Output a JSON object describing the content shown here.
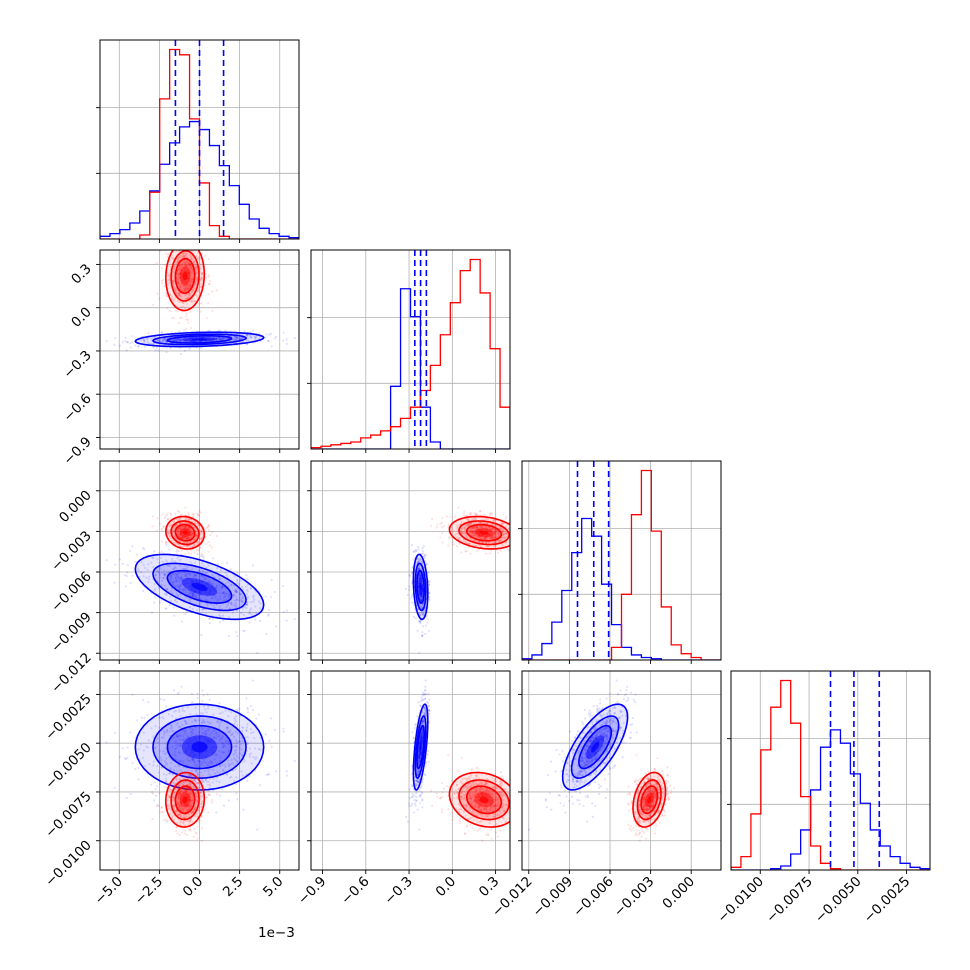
{
  "figure": {
    "x_offset_label": "1e−3"
  },
  "colors": {
    "series_a": "#0000ff",
    "series_b": "#ff0000",
    "grid": "#b0b0b0",
    "frame": "#000000"
  },
  "chart_data": {
    "type": "corner",
    "grid": true,
    "parameters": [
      {
        "range": [
          -6.2,
          6.2
        ],
        "ticks": [
          -5.0,
          -2.5,
          0.0,
          2.5,
          5.0
        ],
        "tick_labels": [
          "−5.0",
          "−2.5",
          "0.0",
          "2.5",
          "5.0"
        ],
        "offset_label": "1e−3"
      },
      {
        "range": [
          -0.98,
          0.4
        ],
        "ticks": [
          -0.9,
          -0.6,
          -0.3,
          0.0,
          0.3
        ],
        "tick_labels": [
          "−0.9",
          "−0.6",
          "−0.3",
          "0.0",
          "0.3"
        ]
      },
      {
        "range": [
          -0.0125,
          0.0022
        ],
        "ticks": [
          -0.012,
          -0.009,
          -0.006,
          -0.003,
          0.0
        ],
        "tick_labels": [
          "−0.012",
          "−0.009",
          "−0.006",
          "−0.003",
          "0.000"
        ]
      },
      {
        "range": [
          -0.0115,
          -0.0013
        ],
        "ticks": [
          -0.01,
          -0.0075,
          -0.005,
          -0.0025
        ],
        "tick_labels": [
          "−0.0100",
          "−0.0075",
          "−0.0050",
          "−0.0025"
        ]
      }
    ],
    "series": [
      {
        "color": "#0000ff",
        "means": [
          0.0,
          -0.22,
          -0.0071,
          -0.0052
        ],
        "sds": [
          2.0,
          0.025,
          0.0012,
          0.0011
        ],
        "corr": [
          [
            1,
            0.25,
            -0.55,
            0.0
          ],
          [
            0.25,
            1,
            -0.2,
            0.6
          ],
          [
            -0.55,
            -0.2,
            1,
            0.7
          ],
          [
            0.0,
            0.6,
            0.7,
            1
          ]
        ],
        "quantiles": [
          [
            -1.5,
            0.0,
            1.5
          ],
          [
            -0.26,
            -0.22,
            -0.18
          ],
          [
            -0.0084,
            -0.0072,
            -0.0061
          ],
          [
            -0.0064,
            -0.0052,
            -0.0039
          ]
        ]
      },
      {
        "color": "#ff0000",
        "means": [
          -0.9,
          0.22,
          -0.0031,
          -0.0079
        ],
        "sds": [
          0.6,
          0.12,
          0.0006,
          0.0007
        ],
        "corr": [
          [
            1,
            0.05,
            -0.1,
            0.05
          ],
          [
            0.05,
            1,
            -0.2,
            -0.2
          ],
          [
            -0.1,
            -0.2,
            1,
            0.3
          ],
          [
            0.05,
            -0.2,
            0.3,
            1
          ]
        ],
        "quantiles": []
      }
    ],
    "histograms": [
      {
        "bins": [
          -6.2,
          6.2,
          20
        ],
        "a": [
          0.02,
          0.04,
          0.07,
          0.12,
          0.21,
          0.36,
          0.56,
          0.72,
          0.84,
          0.88,
          0.82,
          0.7,
          0.55,
          0.4,
          0.26,
          0.15,
          0.08,
          0.04,
          0.02,
          0.01
        ],
        "b": [
          0,
          0,
          0,
          0,
          0.03,
          0.35,
          1.05,
          1.42,
          1.38,
          0.9,
          0.42,
          0.1,
          0.02,
          0,
          0,
          0,
          0,
          0,
          0,
          0
        ]
      },
      {
        "bins": [
          -0.98,
          0.4,
          20
        ],
        "a": [
          0,
          0,
          0,
          0,
          0,
          0,
          0,
          0,
          0.45,
          1.15,
          0.95,
          0.3,
          0.05,
          0,
          0,
          0,
          0,
          0,
          0,
          0
        ],
        "b": [
          0.01,
          0.02,
          0.03,
          0.04,
          0.05,
          0.08,
          0.1,
          0.13,
          0.16,
          0.22,
          0.3,
          0.42,
          0.6,
          0.82,
          1.05,
          1.28,
          1.36,
          1.12,
          0.72,
          0.3
        ]
      },
      {
        "bins": [
          -0.0125,
          0.0022,
          20
        ],
        "a": [
          0.01,
          0.04,
          0.13,
          0.3,
          0.55,
          0.85,
          1.12,
          0.98,
          0.6,
          0.28,
          0.1,
          0.04,
          0.02,
          0.01,
          0,
          0,
          0,
          0,
          0,
          0
        ],
        "b": [
          0,
          0,
          0,
          0,
          0,
          0,
          0,
          0,
          0,
          0.1,
          0.52,
          1.15,
          1.5,
          1.02,
          0.42,
          0.12,
          0.05,
          0.02,
          0,
          0
        ]
      },
      {
        "bins": [
          -0.0115,
          -0.0013,
          20
        ],
        "a": [
          0,
          0,
          0,
          0,
          0.01,
          0.03,
          0.12,
          0.3,
          0.6,
          0.92,
          1.05,
          0.95,
          0.72,
          0.5,
          0.3,
          0.18,
          0.1,
          0.05,
          0.02,
          0.01
        ],
        "b": [
          0.02,
          0.1,
          0.42,
          0.9,
          1.22,
          1.42,
          1.1,
          0.55,
          0.18,
          0.05,
          0.01,
          0,
          0,
          0,
          0,
          0,
          0,
          0,
          0,
          0
        ]
      }
    ]
  }
}
